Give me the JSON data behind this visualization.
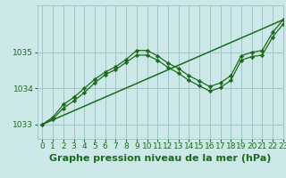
{
  "title": "Graphe pression niveau de la mer (hPa)",
  "bg_color": "#cce8e8",
  "grid_color": "#a0c8c8",
  "line_color": "#1a6b1a",
  "marker_color": "#1a6b1a",
  "xlim": [
    -0.5,
    23
  ],
  "ylim": [
    1032.6,
    1036.3
  ],
  "yticks": [
    1033,
    1034,
    1035
  ],
  "xticks": [
    0,
    1,
    2,
    3,
    4,
    5,
    6,
    7,
    8,
    9,
    10,
    11,
    12,
    13,
    14,
    15,
    16,
    17,
    18,
    19,
    20,
    21,
    22,
    23
  ],
  "series1_x": [
    0,
    1,
    2,
    3,
    4,
    5,
    6,
    7,
    8,
    9,
    10,
    11,
    12,
    13,
    14,
    15,
    16,
    17,
    18,
    19,
    20,
    21,
    22,
    23
  ],
  "series1_y": [
    1033.0,
    1033.2,
    1033.55,
    1033.75,
    1034.0,
    1034.25,
    1034.45,
    1034.6,
    1034.8,
    1035.05,
    1035.05,
    1034.9,
    1034.7,
    1034.55,
    1034.35,
    1034.2,
    1034.05,
    1034.15,
    1034.35,
    1034.9,
    1035.0,
    1035.05,
    1035.55,
    1035.9
  ],
  "series2_x": [
    0,
    1,
    2,
    3,
    4,
    5,
    6,
    7,
    8,
    9,
    10,
    11,
    12,
    13,
    14,
    15,
    16,
    17,
    18,
    19,
    20,
    21,
    22,
    23
  ],
  "series2_y": [
    1033.0,
    1033.15,
    1033.45,
    1033.65,
    1033.88,
    1034.15,
    1034.38,
    1034.52,
    1034.72,
    1034.92,
    1034.92,
    1034.78,
    1034.58,
    1034.42,
    1034.22,
    1034.07,
    1033.92,
    1034.02,
    1034.22,
    1034.78,
    1034.88,
    1034.92,
    1035.42,
    1035.78
  ],
  "trend_x": [
    0,
    23
  ],
  "trend_y": [
    1033.0,
    1035.9
  ],
  "title_fontsize": 8,
  "tick_fontsize": 6.5
}
